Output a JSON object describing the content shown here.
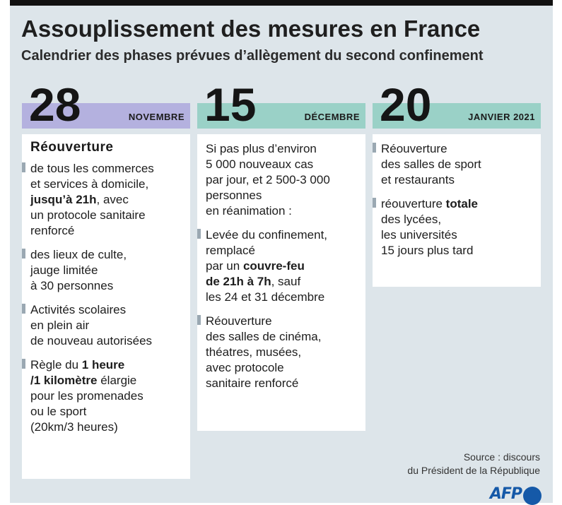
{
  "title": "Assouplissement des mesures en France",
  "subtitle": "Calendrier des phases prévues d’allègement du second confinement",
  "colors": {
    "lavender": "#b4b1df",
    "teal": "#9ad1c7",
    "marker": "#9aa8b2",
    "background": "#dde5ea",
    "afp_blue": "#1559a8"
  },
  "columns": [
    {
      "day": "28",
      "month": "NOVEMBRE",
      "heading": "Réouverture",
      "items": [
        [
          "de tous les commerces",
          "et services à domicile,",
          "jusqu’à 21h, avec",
          "un protocole sanitaire",
          "renforcé"
        ],
        [
          "des lieux de culte,",
          "jauge limitée",
          "à 30 personnes"
        ],
        [
          "Activités scolaires",
          "en plein air",
          "de nouveau autorisées"
        ],
        [
          "Règle du 1 heure",
          "/1 kilomètre élargie",
          "pour les promenades",
          "ou le sport",
          "(20km/3 heures)"
        ]
      ]
    },
    {
      "day": "15",
      "month": "DÉCEMBRE",
      "intro": [
        "Si pas plus d’environ",
        "5 000 nouveaux cas",
        "par jour, et 2 500-3 000",
        "personnes",
        "en réanimation :"
      ],
      "items": [
        [
          "Levée du confinement,",
          "remplacé",
          "par un couvre-feu",
          "de 21h à 7h, sauf",
          "les 24 et 31 décembre"
        ],
        [
          "Réouverture",
          "des salles de cinéma,",
          "théatres, musées,",
          "avec protocole",
          "sanitaire renforcé"
        ]
      ]
    },
    {
      "day": "20",
      "month": "JANVIER 2021",
      "items": [
        [
          "Réouverture",
          "des salles de sport",
          "et restaurants"
        ],
        [
          "réouverture totale",
          "des lycées,",
          "les universités",
          "15 jours plus tard"
        ]
      ]
    }
  ],
  "source": [
    "Source : discours",
    "du Président de la République"
  ],
  "logo": "AFP"
}
